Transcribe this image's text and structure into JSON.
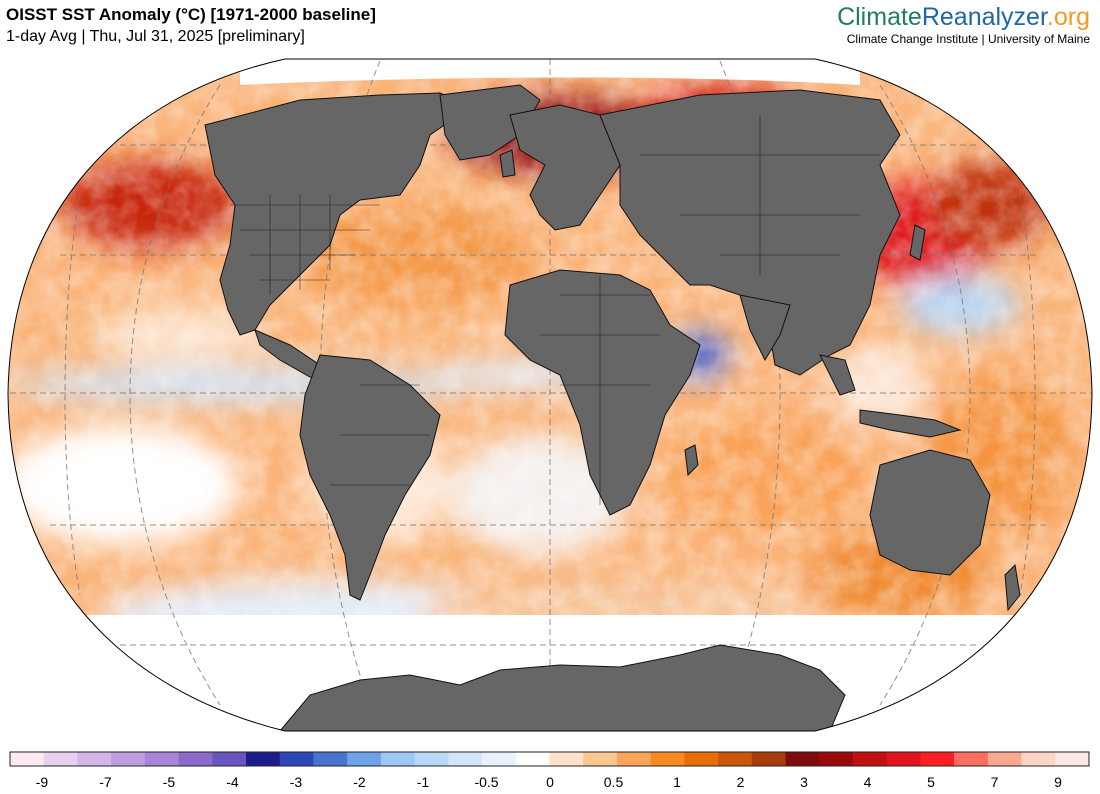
{
  "header": {
    "title": "OISST SST Anomaly (°C) [1971-2000 baseline]",
    "subtitle": "1-day Avg | Thu, Jul 31, 2025 [preliminary]"
  },
  "brand": {
    "part1": "Climate",
    "part2": "Reanalyzer",
    "part3": ".org",
    "subline": "Climate Change Institute | University of Maine",
    "colors": {
      "climate": "#1f7d63",
      "reanalyzer": "#1f66a6",
      "org": "#f59a23"
    }
  },
  "map": {
    "projection": "Robinson-like global",
    "land_color": "#666666",
    "ice_color": "#ffffff"
  },
  "legend": {
    "colors": [
      "#fde9ee",
      "#e6d2ee",
      "#d3b5e8",
      "#c09ce0",
      "#a883d8",
      "#8a6acd",
      "#6a55bf",
      "#1c1c8c",
      "#2d46b8",
      "#4a73d0",
      "#6fa3e8",
      "#9cc8f5",
      "#b6d9f7",
      "#d2e6fa",
      "#e7f2fc",
      "#ffffff",
      "#fde3cc",
      "#fcc690",
      "#faa559",
      "#f98a22",
      "#e86d08",
      "#c8560b",
      "#a63c09",
      "#7f0c0c",
      "#990b0b",
      "#c01010",
      "#e0141a",
      "#fb1e22",
      "#fb6e60",
      "#fba890",
      "#fdd5c5",
      "#fde8e6"
    ],
    "tick_labels": [
      "-9",
      "-7",
      "-5",
      "-4",
      "-3",
      "-2",
      "-1",
      "-0.5",
      "0",
      "0.5",
      "1",
      "2",
      "3",
      "4",
      "5",
      "7",
      "9"
    ]
  }
}
